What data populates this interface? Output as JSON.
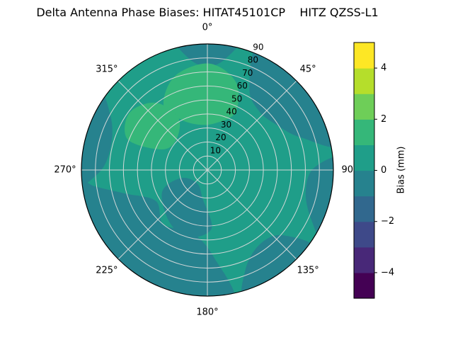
{
  "title": "Delta Antenna Phase Biases: HITAT45101CP    HITZ QZSS-L1",
  "chart_data": {
    "type": "polar_contour",
    "title": "Delta Antenna Phase Biases: HITAT45101CP    HITZ QZSS-L1",
    "angular_ticks_deg": [
      0,
      45,
      90,
      135,
      180,
      225,
      270,
      315
    ],
    "angular_tick_labels": [
      "0°",
      "45°",
      "90°",
      "135°",
      "180°",
      "225°",
      "270°",
      "315°"
    ],
    "radial_ticks": [
      10,
      20,
      30,
      40,
      50,
      60,
      70,
      80,
      90
    ],
    "radial_max": 90,
    "radial_label_angle_deg": 22.5,
    "base_value_mm": 0.5,
    "colorbar": {
      "label": "Bias (mm)",
      "orientation": "vertical",
      "range": [
        -5,
        5
      ],
      "ticks": [
        -4,
        -2,
        0,
        2,
        4
      ],
      "tick_labels": [
        "−4",
        "−2",
        "0",
        "2",
        "4"
      ],
      "colors_bottom_to_top": [
        "#440154",
        "#482878",
        "#3e4989",
        "#31688e",
        "#26828e",
        "#1f9e89",
        "#35b779",
        "#6ece58",
        "#b5de2b",
        "#fde725"
      ]
    },
    "grid": {
      "color": "#dcdcdc",
      "outline_color": "#000000"
    },
    "regions": [
      {
        "name": "top-rim-dip",
        "value_mm": -0.5,
        "points": [
          [
            -14,
            98
          ],
          [
            -9,
            80
          ],
          [
            0,
            74
          ],
          [
            9,
            80
          ],
          [
            14,
            98
          ],
          [
            0,
            104
          ]
        ]
      },
      {
        "name": "upper-right",
        "value_mm": -0.5,
        "points": [
          [
            23,
            98
          ],
          [
            27,
            66
          ],
          [
            41,
            56
          ],
          [
            57,
            59
          ],
          [
            71,
            71
          ],
          [
            79,
            98
          ],
          [
            50,
            105
          ]
        ]
      },
      {
        "name": "right-rim",
        "value_mm": -0.5,
        "points": [
          [
            85,
            98
          ],
          [
            89,
            76
          ],
          [
            103,
            72
          ],
          [
            116,
            83
          ],
          [
            121,
            98
          ],
          [
            103,
            105
          ]
        ]
      },
      {
        "name": "lower-right-rim",
        "value_mm": -0.5,
        "points": [
          [
            126,
            98
          ],
          [
            131,
            71
          ],
          [
            145,
            65
          ],
          [
            159,
            76
          ],
          [
            164,
            98
          ],
          [
            145,
            105
          ]
        ]
      },
      {
        "name": "lower-left",
        "value_mm": -0.5,
        "points": [
          [
            169,
            98
          ],
          [
            176,
            62
          ],
          [
            194,
            46
          ],
          [
            219,
            50
          ],
          [
            239,
            43
          ],
          [
            254,
            61
          ],
          [
            262,
            82
          ],
          [
            267,
            98
          ],
          [
            230,
            105
          ],
          [
            198,
            105
          ]
        ]
      },
      {
        "name": "left-rim",
        "value_mm": -0.5,
        "points": [
          [
            263,
            98
          ],
          [
            269,
            77
          ],
          [
            284,
            71
          ],
          [
            299,
            79
          ],
          [
            306,
            98
          ],
          [
            285,
            105
          ]
        ]
      },
      {
        "name": "center-blob",
        "value_mm": -0.5,
        "points": [
          [
            176,
            42
          ],
          [
            196,
            50
          ],
          [
            216,
            46
          ],
          [
            244,
            36
          ],
          [
            253,
            20
          ],
          [
            218,
            12
          ],
          [
            189,
            21
          ]
        ]
      },
      {
        "name": "top-center-high",
        "value_mm": 1.5,
        "points": [
          [
            -34,
            56
          ],
          [
            -19,
            71
          ],
          [
            1,
            76
          ],
          [
            18,
            66
          ],
          [
            26,
            46
          ],
          [
            10,
            34
          ],
          [
            -11,
            33
          ],
          [
            -28,
            41
          ]
        ]
      },
      {
        "name": "upper-left-high",
        "value_mm": 1.5,
        "points": [
          [
            291,
            61
          ],
          [
            306,
            69
          ],
          [
            322,
            61
          ],
          [
            331,
            43
          ],
          [
            314,
            31
          ],
          [
            294,
            36
          ]
        ]
      }
    ]
  }
}
